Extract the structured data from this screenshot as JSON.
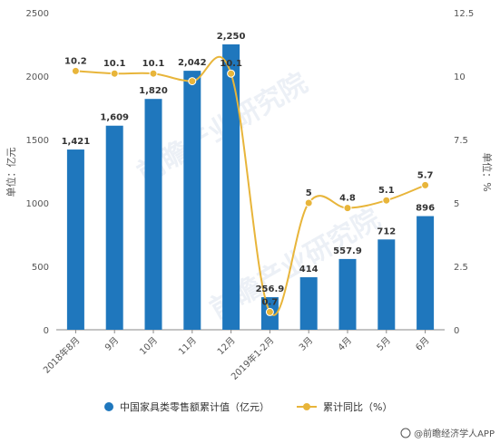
{
  "chart_data": {
    "type": "bar+line",
    "categories": [
      "2018年8月",
      "9月",
      "10月",
      "11月",
      "12月",
      "2019年1-2月",
      "3月",
      "4月",
      "5月",
      "6月"
    ],
    "series": [
      {
        "name": "中国家具类零售额累计值（亿元）",
        "type": "bar",
        "axis": "left",
        "values": [
          1421,
          1609,
          1820,
          2042,
          2250,
          256.9,
          414,
          557.9,
          712,
          896
        ],
        "labels": [
          "1,421",
          "1,609",
          "1,820",
          "2,042",
          "2,250",
          "256.9",
          "414",
          "557.9",
          "712",
          "896"
        ],
        "color": "#1f77bd"
      },
      {
        "name": "累计同比（%）",
        "type": "line",
        "axis": "right",
        "values": [
          10.2,
          10.1,
          10.1,
          9.8,
          10.1,
          0.7,
          5,
          4.8,
          5.1,
          5.7
        ],
        "labels": [
          "10.2",
          "10.1",
          "10.1",
          "",
          "10.1",
          "0.7",
          "5",
          "4.8",
          "5.1",
          "5.7"
        ],
        "color": "#e8b53a"
      }
    ],
    "yleft": {
      "label": "单位：亿元",
      "range": [
        0,
        2500
      ],
      "ticks": [
        0,
        500,
        1000,
        1500,
        2000,
        2500
      ],
      "tick_labels": [
        "0",
        "500",
        "1000",
        "1500",
        "2000",
        "2500"
      ]
    },
    "yright": {
      "label": "单位：%",
      "range": [
        0,
        12.5
      ],
      "ticks": [
        0,
        2.5,
        5,
        7.5,
        10,
        12.5
      ],
      "tick_labels": [
        "0",
        "2.5",
        "5",
        "7.5",
        "10",
        "12.5"
      ]
    },
    "grid": false,
    "legend_position": "bottom"
  },
  "credit": "@前瞻经济学人APP",
  "watermark": "前瞻产业研究院",
  "colors": {
    "axis": "#888888",
    "text": "#333333"
  }
}
